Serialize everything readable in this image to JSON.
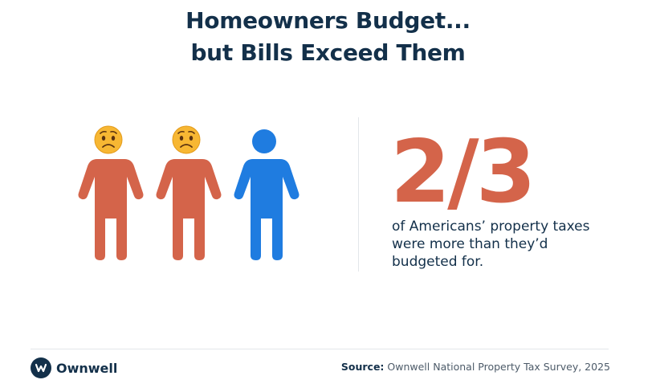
{
  "header": {
    "title_line1": "Homeowners Budget...",
    "title_line2": "but Bills Exceed Them"
  },
  "infographic": {
    "figures": [
      {
        "color": "#d4644a",
        "face": "worried-face-icon"
      },
      {
        "color": "#d4644a",
        "face": "worried-face-icon"
      },
      {
        "color": "#1f7ce0",
        "face": "none"
      }
    ],
    "stat": "2/3",
    "caption": "of Americans’ property taxes were more than they’d budgeted for."
  },
  "footer": {
    "brand": "Ownwell",
    "source_label": "Source:",
    "source_text": "Ownwell National Property Tax Survey, 2025"
  },
  "colors": {
    "navy": "#13304a",
    "orange": "#d4644a",
    "blue": "#1f7ce0"
  }
}
